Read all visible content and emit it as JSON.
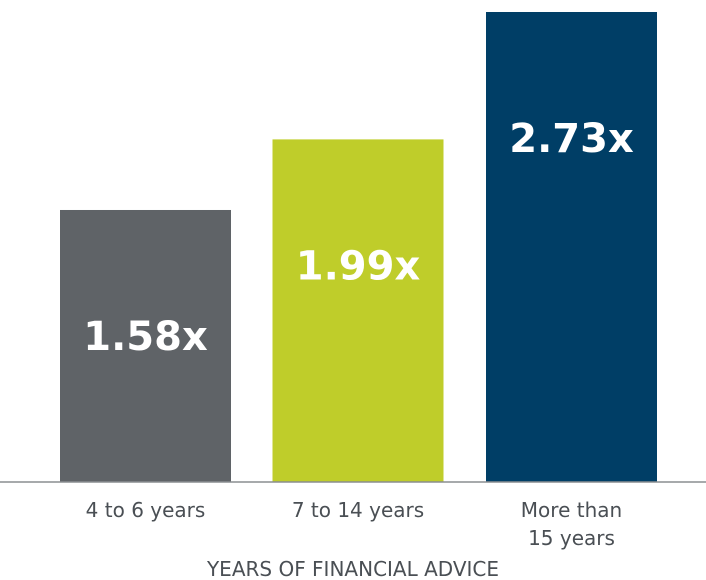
{
  "chart_data": {
    "type": "bar",
    "categories": [
      "4 to 6 years",
      "7 to 14 years",
      "More than 15 years"
    ],
    "category_lines": [
      [
        "4 to 6 years"
      ],
      [
        "7 to 14 years"
      ],
      [
        "More than",
        "15 years"
      ]
    ],
    "values": [
      1.58,
      1.99,
      2.73
    ],
    "data_labels": [
      "1.58x",
      "1.99x",
      "2.73x"
    ],
    "colors": [
      "#5f6367",
      "#bfcd2a",
      "#003e66"
    ],
    "xlabel": "YEARS OF FINANCIAL ADVICE",
    "ylabel": "",
    "ylim": [
      0,
      2.73
    ],
    "grid": false,
    "legend": "none"
  }
}
